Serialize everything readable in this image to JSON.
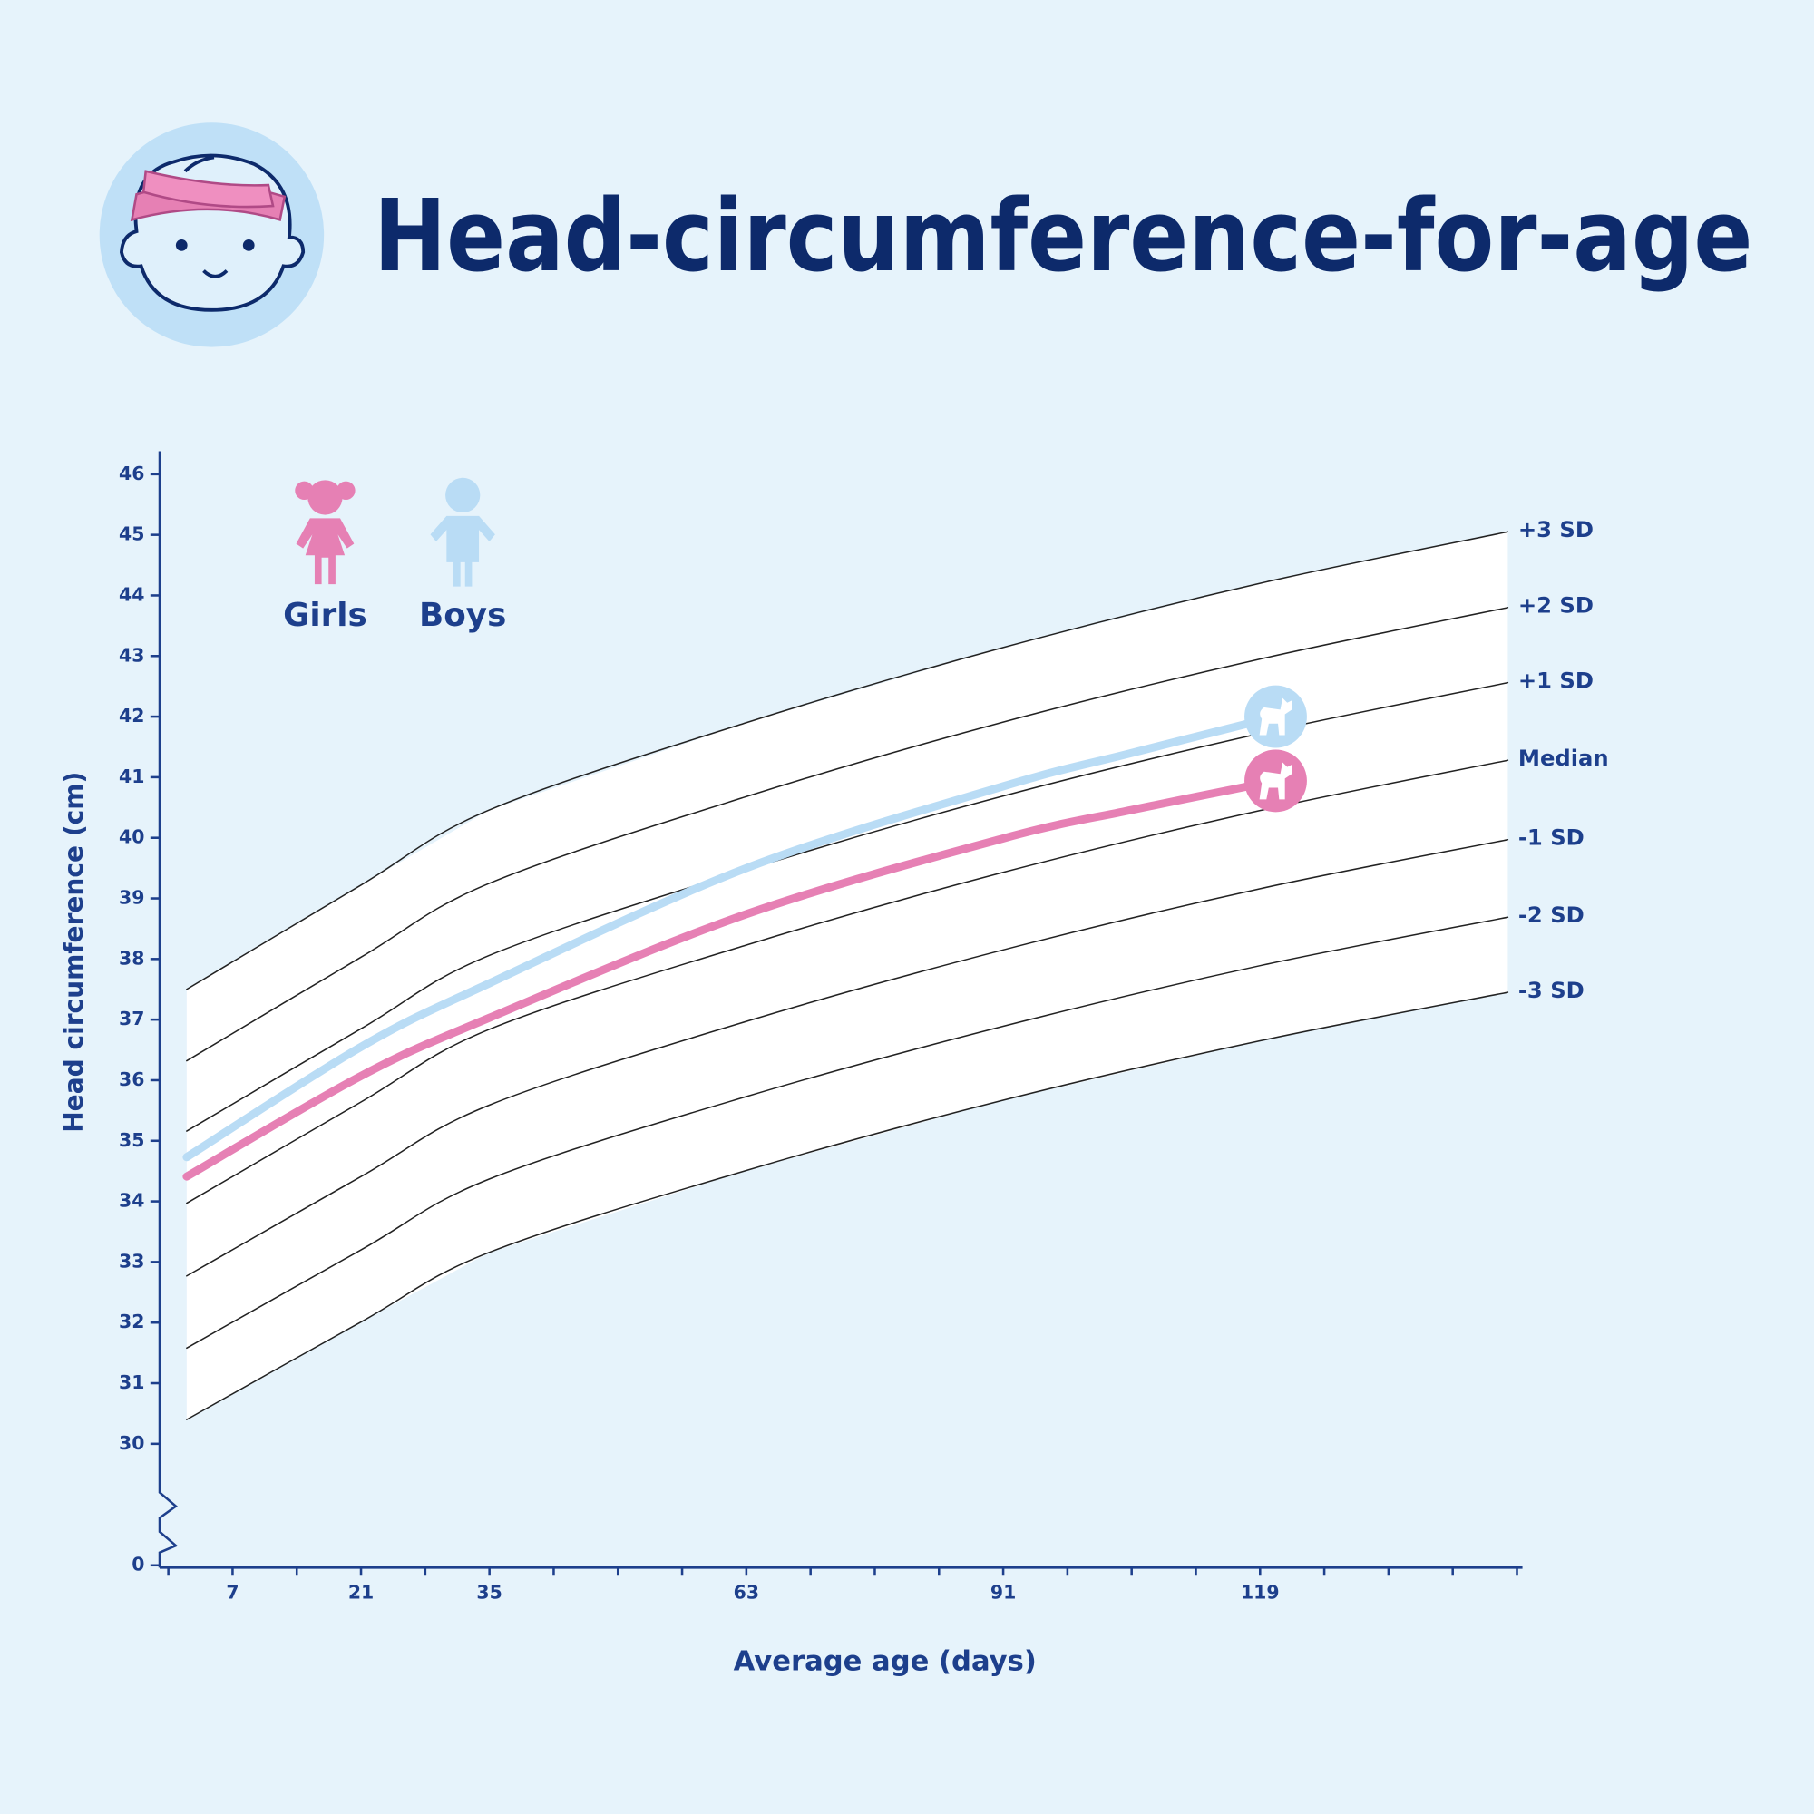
{
  "chart_data": {
    "type": "line",
    "title": "Head-circumference-for-age",
    "x_label": "Average age (days)",
    "y_label": "Head circumference (cm)",
    "xlim": [
      -0.95,
      147.6
    ],
    "xticks": [
      7,
      21,
      35,
      63,
      91,
      119
    ],
    "x_minor_ticks": [
      0,
      14,
      28,
      42,
      49,
      56,
      70,
      77,
      84,
      98,
      105,
      112,
      126,
      133,
      140,
      147
    ],
    "ylim": [
      30,
      46.38
    ],
    "yticks": [
      30,
      31,
      32,
      33,
      34,
      35,
      36,
      37,
      38,
      39,
      40,
      41,
      42,
      43,
      44,
      45,
      46
    ],
    "y_axis_break": {
      "tick": 0
    },
    "series": [
      {
        "name": "+3 SD",
        "color": "#222222",
        "line_width": 1.2,
        "x": [
          2,
          21,
          35,
          63,
          91,
          119,
          146
        ],
        "values": [
          37.5,
          39.22,
          40.46,
          41.9,
          43.14,
          44.2,
          45.05
        ]
      },
      {
        "name": "+2 SD",
        "color": "#222222",
        "line_width": 1.2,
        "x": [
          2,
          21,
          35,
          63,
          91,
          119,
          146
        ],
        "values": [
          36.32,
          38.03,
          39.25,
          40.68,
          41.91,
          42.95,
          43.8
        ]
      },
      {
        "name": "+1 SD",
        "color": "#222222",
        "line_width": 1.2,
        "x": [
          2,
          21,
          35,
          63,
          91,
          119,
          146
        ],
        "values": [
          35.16,
          36.85,
          38.06,
          39.47,
          40.69,
          41.72,
          42.56
        ]
      },
      {
        "name": "Median",
        "color": "#222222",
        "line_width": 1.2,
        "x": [
          2,
          21,
          35,
          63,
          91,
          119,
          146
        ],
        "values": [
          33.97,
          35.64,
          36.84,
          38.23,
          39.43,
          40.45,
          41.28
        ]
      },
      {
        "name": "-1 SD",
        "color": "#222222",
        "line_width": 1.2,
        "x": [
          2,
          21,
          35,
          63,
          91,
          119,
          146
        ],
        "values": [
          32.77,
          34.41,
          35.59,
          36.97,
          38.15,
          39.16,
          39.97
        ]
      },
      {
        "name": "-2 SD",
        "color": "#222222",
        "line_width": 1.2,
        "x": [
          2,
          21,
          35,
          63,
          91,
          119,
          146
        ],
        "values": [
          31.58,
          33.2,
          34.37,
          35.73,
          36.89,
          37.89,
          38.69
        ]
      },
      {
        "name": "-3 SD",
        "color": "#222222",
        "line_width": 1.2,
        "x": [
          2,
          21,
          35,
          63,
          91,
          119,
          146
        ],
        "values": [
          30.4,
          32.01,
          33.16,
          34.51,
          35.67,
          36.65,
          37.45
        ]
      },
      {
        "name": "Boys",
        "color": "#b9dcf5",
        "line_width": 7,
        "end_marker": true,
        "x": [
          2,
          21,
          35,
          63,
          91,
          105,
          120.7
        ],
        "values": [
          34.73,
          36.55,
          37.6,
          39.5,
          40.85,
          41.4,
          42.0
        ]
      },
      {
        "name": "Girls",
        "color": "#e680b4",
        "line_width": 7,
        "end_marker": true,
        "x": [
          2,
          21,
          35,
          63,
          91,
          105,
          120.7
        ],
        "values": [
          34.41,
          36.07,
          37.03,
          38.74,
          39.99,
          40.46,
          40.94
        ]
      }
    ]
  }
}
